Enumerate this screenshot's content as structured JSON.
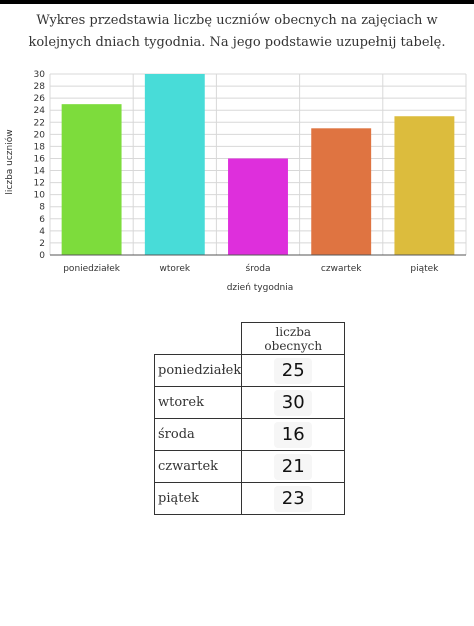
{
  "question": "Wykres przedstawia liczbę uczniów obecnych na zajęciach w kolejnych dniach tygodnia. Na jego podstawie uzupełnij tabelę.",
  "colors": {
    "bars": [
      "#7ddc3c",
      "#48dcd8",
      "#de2fdc",
      "#df7441",
      "#dcbc3d"
    ],
    "grid": "#d8d8d8",
    "axis": "#555555"
  },
  "chart_data": {
    "type": "bar",
    "categories": [
      "poniedziałek",
      "wtorek",
      "środa",
      "czwartek",
      "piątek"
    ],
    "values": [
      25,
      30,
      16,
      21,
      23
    ],
    "title": "",
    "xlabel": "dzień tygodnia",
    "ylabel": "liczba uczniów",
    "ylim": [
      0,
      30
    ],
    "yticks": [
      0,
      2,
      4,
      6,
      8,
      10,
      12,
      14,
      16,
      18,
      20,
      22,
      24,
      26,
      28,
      30
    ],
    "grid": true,
    "legend": "none"
  },
  "table": {
    "header": "liczba obecnych",
    "rows": [
      {
        "label": "poniedziałek",
        "value": "25"
      },
      {
        "label": "wtorek",
        "value": "30"
      },
      {
        "label": "środa",
        "value": "16"
      },
      {
        "label": "czwartek",
        "value": "21"
      },
      {
        "label": "piątek",
        "value": "23"
      }
    ]
  }
}
